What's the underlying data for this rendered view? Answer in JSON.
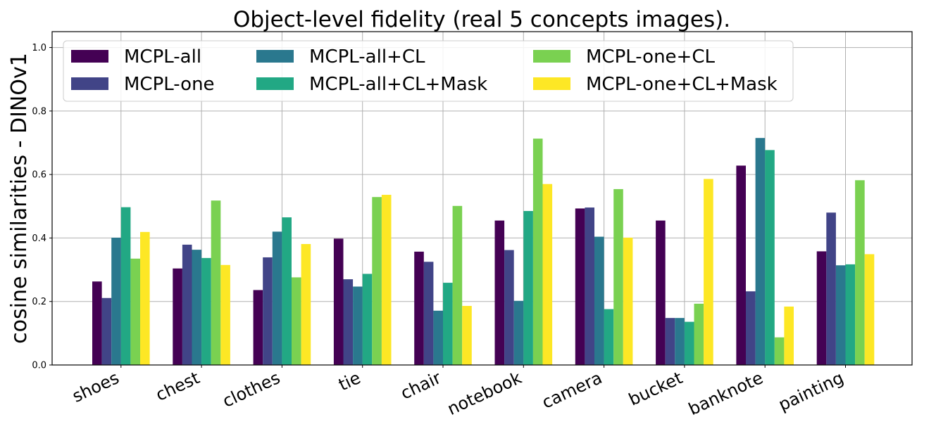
{
  "chart_data": {
    "type": "bar",
    "title": "Object-level fidelity (real 5 concepts images).",
    "xlabel": "",
    "ylabel": "cosine similarities - DINOv1",
    "ylim": [
      0,
      1.05
    ],
    "yticks": [
      "0.0",
      "0.2",
      "0.4",
      "0.6",
      "0.8",
      "1.0"
    ],
    "grid": true,
    "legend_position": "top",
    "categories": [
      "shoes",
      "chest",
      "clothes",
      "tie",
      "chair",
      "notebook",
      "camera",
      "bucket",
      "banknote",
      "painting"
    ],
    "series": [
      {
        "name": "MCPL-all",
        "color": "#440154",
        "values": [
          0.263,
          0.304,
          0.236,
          0.398,
          0.357,
          0.455,
          0.493,
          0.455,
          0.628,
          0.358
        ]
      },
      {
        "name": "MCPL-one",
        "color": "#414487",
        "values": [
          0.211,
          0.379,
          0.339,
          0.27,
          0.325,
          0.362,
          0.496,
          0.148,
          0.232,
          0.48
        ]
      },
      {
        "name": "MCPL-all+CL",
        "color": "#2a788e",
        "values": [
          0.401,
          0.363,
          0.42,
          0.247,
          0.171,
          0.202,
          0.404,
          0.148,
          0.715,
          0.314
        ]
      },
      {
        "name": "MCPL-all+CL+Mask",
        "color": "#22a884",
        "values": [
          0.497,
          0.337,
          0.465,
          0.287,
          0.259,
          0.485,
          0.176,
          0.136,
          0.677,
          0.317
        ]
      },
      {
        "name": "MCPL-one+CL",
        "color": "#7ad151",
        "values": [
          0.335,
          0.518,
          0.276,
          0.529,
          0.501,
          0.713,
          0.554,
          0.193,
          0.087,
          0.582
        ]
      },
      {
        "name": "MCPL-one+CL+Mask",
        "color": "#fde725",
        "values": [
          0.419,
          0.315,
          0.381,
          0.536,
          0.186,
          0.57,
          0.401,
          0.586,
          0.184,
          0.349
        ]
      }
    ]
  }
}
